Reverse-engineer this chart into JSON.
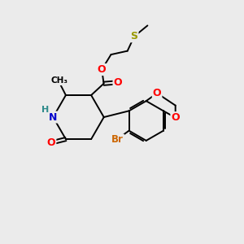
{
  "background_color": "#ebebeb",
  "atom_colors": {
    "C": "#000000",
    "N": "#0000cd",
    "O": "#ff0000",
    "S": "#999900",
    "Br": "#cc6600",
    "H": "#2e8b8b"
  },
  "bond_color": "#000000",
  "figsize": [
    3.0,
    3.0
  ],
  "dpi": 100
}
